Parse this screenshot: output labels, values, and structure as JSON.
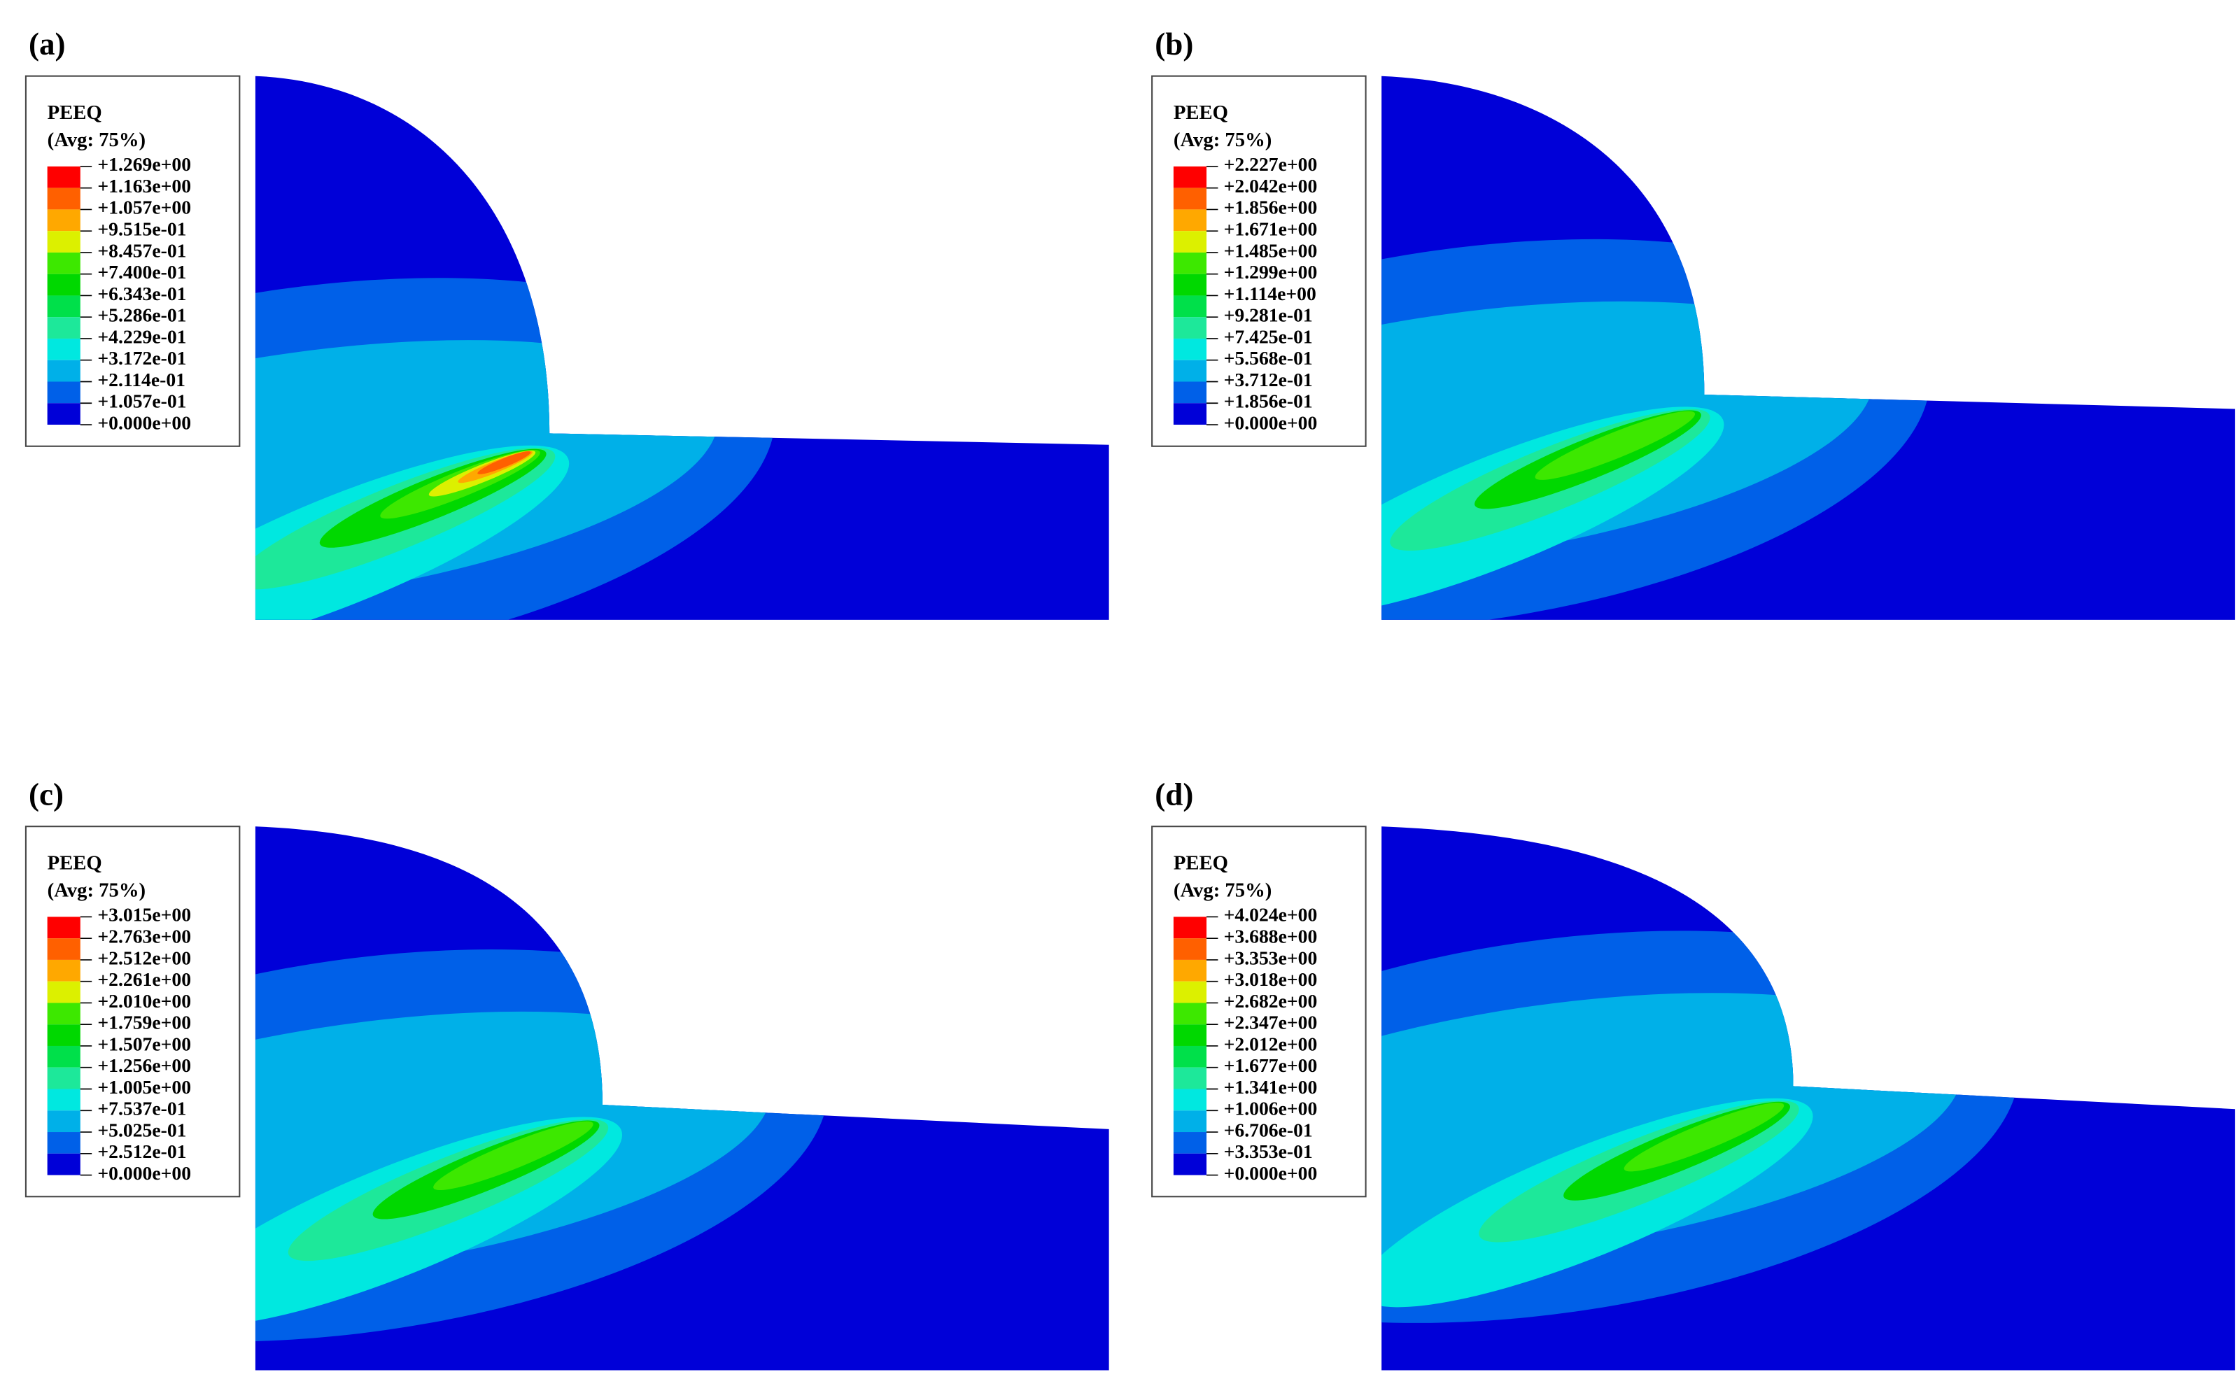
{
  "panels": [
    {
      "label": "(a)",
      "legend": {
        "title": "PEEQ",
        "subtitle": "(Avg: 75%)",
        "values": [
          "+1.269e+00",
          "+1.163e+00",
          "+1.057e+00",
          "+9.515e-01",
          "+8.457e-01",
          "+7.400e-01",
          "+6.343e-01",
          "+5.286e-01",
          "+4.229e-01",
          "+3.172e-01",
          "+2.114e-01",
          "+1.057e-01",
          "+0.000e+00"
        ]
      }
    },
    {
      "label": "(b)",
      "legend": {
        "title": "PEEQ",
        "subtitle": "(Avg: 75%)",
        "values": [
          "+2.227e+00",
          "+2.042e+00",
          "+1.856e+00",
          "+1.671e+00",
          "+1.485e+00",
          "+1.299e+00",
          "+1.114e+00",
          "+9.281e-01",
          "+7.425e-01",
          "+5.568e-01",
          "+3.712e-01",
          "+1.856e-01",
          "+0.000e+00"
        ]
      }
    },
    {
      "label": "(c)",
      "legend": {
        "title": "PEEQ",
        "subtitle": "(Avg: 75%)",
        "values": [
          "+3.015e+00",
          "+2.763e+00",
          "+2.512e+00",
          "+2.261e+00",
          "+2.010e+00",
          "+1.759e+00",
          "+1.507e+00",
          "+1.256e+00",
          "+1.005e+00",
          "+7.537e-01",
          "+5.025e-01",
          "+2.512e-01",
          "+0.000e+00"
        ]
      }
    },
    {
      "label": "(d)",
      "legend": {
        "title": "PEEQ",
        "subtitle": "(Avg: 75%)",
        "values": [
          "+4.024e+00",
          "+3.688e+00",
          "+3.353e+00",
          "+3.018e+00",
          "+2.682e+00",
          "+2.347e+00",
          "+2.012e+00",
          "+1.677e+00",
          "+1.341e+00",
          "+1.006e+00",
          "+6.706e-01",
          "+3.353e-01",
          "+0.000e+00"
        ]
      }
    }
  ]
}
